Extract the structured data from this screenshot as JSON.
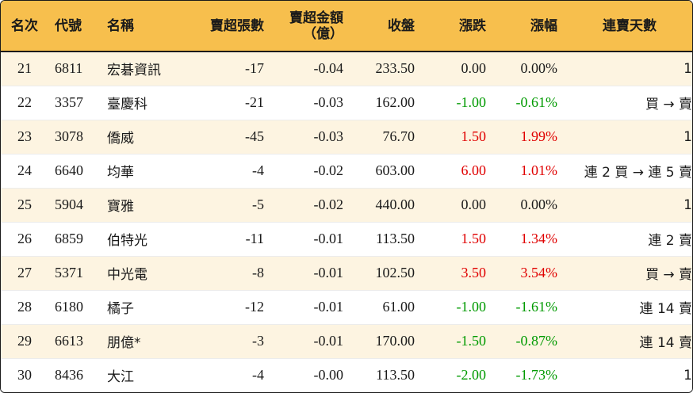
{
  "headers": {
    "rank": "名次",
    "code": "代號",
    "name": "名稱",
    "oversold_lots": "賣超張數",
    "oversold_amount_line1": "賣超金額",
    "oversold_amount_line2": "（億）",
    "close": "收盤",
    "change": "漲跌",
    "change_pct": "漲幅",
    "consecutive_days": "連賣天數"
  },
  "colors": {
    "header_bg": "#f7bf4d",
    "odd_row_bg": "#fdf4e1",
    "even_row_bg": "#ffffff",
    "up": "#e00000",
    "down": "#009a00"
  },
  "rows": [
    {
      "rank": "21",
      "code": "6811",
      "name": "宏碁資訊",
      "lots": "-17",
      "amount": "-0.04",
      "close": "233.50",
      "change": "0.00",
      "pct": "0.00%",
      "days": "1",
      "trend": "flat"
    },
    {
      "rank": "22",
      "code": "3357",
      "name": "臺慶科",
      "lots": "-21",
      "amount": "-0.03",
      "close": "162.00",
      "change": "-1.00",
      "pct": "-0.61%",
      "days": "買 → 賣",
      "trend": "down"
    },
    {
      "rank": "23",
      "code": "3078",
      "name": "僑威",
      "lots": "-45",
      "amount": "-0.03",
      "close": "76.70",
      "change": "1.50",
      "pct": "1.99%",
      "days": "1",
      "trend": "up"
    },
    {
      "rank": "24",
      "code": "6640",
      "name": "均華",
      "lots": "-4",
      "amount": "-0.02",
      "close": "603.00",
      "change": "6.00",
      "pct": "1.01%",
      "days": "連 2 買 → 連 5 賣",
      "trend": "up"
    },
    {
      "rank": "25",
      "code": "5904",
      "name": "寶雅",
      "lots": "-5",
      "amount": "-0.02",
      "close": "440.00",
      "change": "0.00",
      "pct": "0.00%",
      "days": "1",
      "trend": "flat"
    },
    {
      "rank": "26",
      "code": "6859",
      "name": "伯特光",
      "lots": "-11",
      "amount": "-0.01",
      "close": "113.50",
      "change": "1.50",
      "pct": "1.34%",
      "days": "連 2 賣",
      "trend": "up"
    },
    {
      "rank": "27",
      "code": "5371",
      "name": "中光電",
      "lots": "-8",
      "amount": "-0.01",
      "close": "102.50",
      "change": "3.50",
      "pct": "3.54%",
      "days": "買 → 賣",
      "trend": "up"
    },
    {
      "rank": "28",
      "code": "6180",
      "name": "橘子",
      "lots": "-12",
      "amount": "-0.01",
      "close": "61.00",
      "change": "-1.00",
      "pct": "-1.61%",
      "days": "連 14 賣",
      "trend": "down"
    },
    {
      "rank": "29",
      "code": "6613",
      "name": "朋億*",
      "lots": "-3",
      "amount": "-0.01",
      "close": "170.00",
      "change": "-1.50",
      "pct": "-0.87%",
      "days": "連 14 賣",
      "trend": "down"
    },
    {
      "rank": "30",
      "code": "8436",
      "name": "大江",
      "lots": "-4",
      "amount": "-0.00",
      "close": "113.50",
      "change": "-2.00",
      "pct": "-1.73%",
      "days": "1",
      "trend": "down"
    }
  ]
}
